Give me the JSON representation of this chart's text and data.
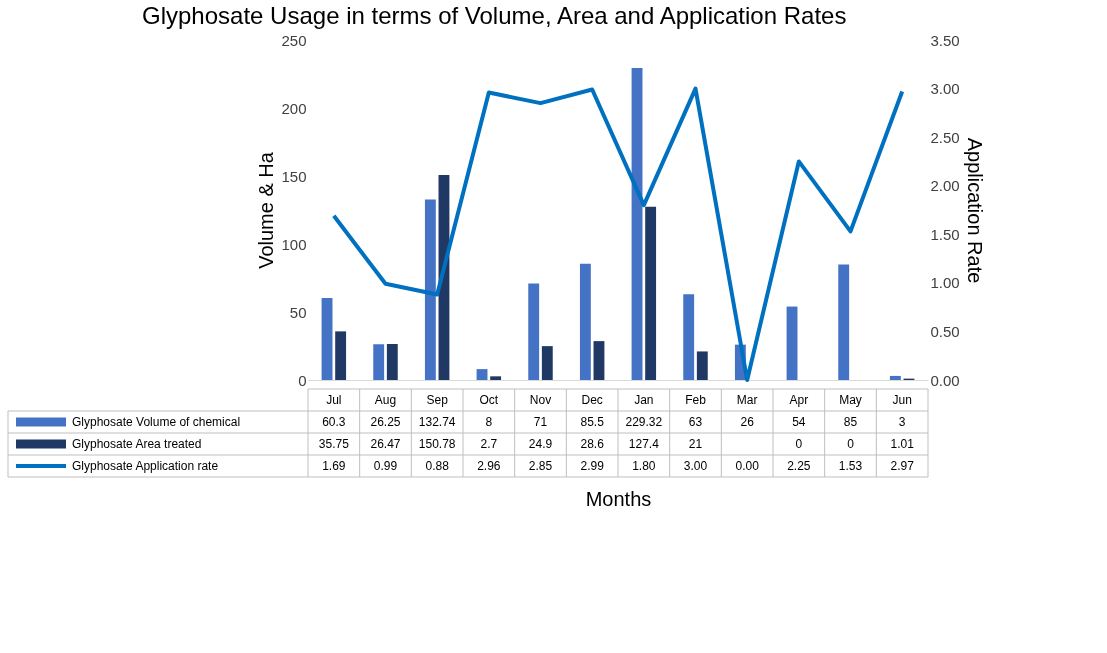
{
  "chart_data": {
    "type": "bar",
    "title": "Glyphosate Usage in terms of Volume, Area and Application Rates",
    "xlabel": "Months",
    "ylabel": "Volume & Ha",
    "y2label": "Application Rate",
    "categories": [
      "Jul",
      "Aug",
      "Sep",
      "Oct",
      "Nov",
      "Dec",
      "Jan",
      "Feb",
      "Mar",
      "Apr",
      "May",
      "Jun"
    ],
    "series": [
      {
        "name": "Glyphosate Volume of chemical",
        "color": "#4472c4",
        "values": [
          60.3,
          26.25,
          132.74,
          8,
          71,
          85.5,
          229.32,
          63,
          26,
          54,
          85,
          3
        ],
        "value_labels": [
          "60.3",
          "26.25",
          "132.74",
          "8",
          "71",
          "85.5",
          "229.32",
          "63",
          "26",
          "54",
          "85",
          "3"
        ]
      },
      {
        "name": "Glyphosate Area treated",
        "color": "#203864",
        "values": [
          35.75,
          26.47,
          150.78,
          2.7,
          24.9,
          28.6,
          127.4,
          21,
          null,
          0,
          0,
          1.01
        ],
        "value_labels": [
          "35.75",
          "26.47",
          "150.78",
          "2.7",
          "24.9",
          "28.6",
          "127.4",
          "21",
          null,
          "0",
          "0",
          "1.01"
        ]
      },
      {
        "name": "Glyphosate Application rate",
        "color": "#0070c0",
        "type": "line",
        "axis": "y2",
        "values": [
          1.69,
          0.99,
          0.88,
          2.96,
          2.85,
          2.99,
          1.8,
          3.0,
          0.0,
          2.25,
          1.53,
          2.97
        ],
        "value_labels": [
          "1.69",
          "0.99",
          "0.88",
          "2.96",
          "2.85",
          "2.99",
          "1.80",
          "3.00",
          "0.00",
          "2.25",
          "1.53",
          "2.97"
        ]
      }
    ],
    "ylim": [
      0,
      250
    ],
    "yticks": [
      0,
      50,
      100,
      150,
      200,
      250
    ],
    "y2lim": [
      0,
      3.5
    ],
    "y2ticks": [
      {
        "value": 0,
        "label": "0.00"
      },
      {
        "value": 0.5,
        "label": "0.50"
      },
      {
        "value": 1,
        "label": "1.00"
      },
      {
        "value": 1.5,
        "label": "1.50"
      },
      {
        "value": 2,
        "label": "2.00"
      },
      {
        "value": 2.5,
        "label": "2.50"
      },
      {
        "value": 3,
        "label": "3.00"
      },
      {
        "value": 3.5,
        "label": "3.50"
      }
    ],
    "legend": "bottom",
    "marker": "none",
    "line_style": "solid"
  }
}
